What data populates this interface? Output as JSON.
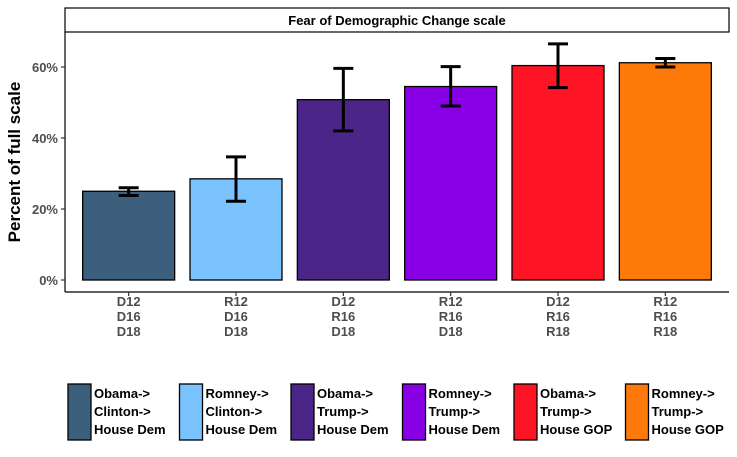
{
  "chart_data": {
    "type": "bar",
    "facet_title": "Fear of Demographic Change scale",
    "ylabel": "Percent of full scale",
    "xlabel": "",
    "ylim": [
      0,
      0.7
    ],
    "yticks": [
      0,
      0.2,
      0.4,
      0.6
    ],
    "ytick_labels": [
      "0%",
      "20%",
      "40%",
      "60%"
    ],
    "grid": false,
    "legend_position": "bottom",
    "categories": [
      [
        "D12",
        "D16",
        "D18"
      ],
      [
        "R12",
        "D16",
        "D18"
      ],
      [
        "D12",
        "R16",
        "D18"
      ],
      [
        "R12",
        "R16",
        "D18"
      ],
      [
        "D12",
        "R16",
        "R18"
      ],
      [
        "R12",
        "R16",
        "R18"
      ]
    ],
    "bars": [
      {
        "value": 0.25,
        "err_low": 0.238,
        "err_high": 0.26,
        "color": "#3d5f7e"
      },
      {
        "value": 0.285,
        "err_low": 0.222,
        "err_high": 0.347,
        "color": "#7ac3ff"
      },
      {
        "value": 0.508,
        "err_low": 0.42,
        "err_high": 0.596,
        "color": "#4b2587"
      },
      {
        "value": 0.545,
        "err_low": 0.49,
        "err_high": 0.601,
        "color": "#8a00e6"
      },
      {
        "value": 0.604,
        "err_low": 0.542,
        "err_high": 0.665,
        "color": "#fe1525"
      },
      {
        "value": 0.612,
        "err_low": 0.6,
        "err_high": 0.624,
        "color": "#fd7a0a"
      }
    ],
    "legend": [
      {
        "lines": [
          "Obama->",
          "Clinton->",
          "House Dem"
        ],
        "color": "#3d5f7e"
      },
      {
        "lines": [
          "Romney->",
          "Clinton->",
          "House Dem"
        ],
        "color": "#7ac3ff"
      },
      {
        "lines": [
          "Obama->",
          "Trump->",
          "House Dem"
        ],
        "color": "#4b2587"
      },
      {
        "lines": [
          "Romney->",
          "Trump->",
          "House Dem"
        ],
        "color": "#8a00e6"
      },
      {
        "lines": [
          "Obama->",
          "Trump->",
          "House GOP"
        ],
        "color": "#fe1525"
      },
      {
        "lines": [
          "Romney->",
          "Trump->",
          "House GOP"
        ],
        "color": "#fd7a0a"
      }
    ]
  }
}
